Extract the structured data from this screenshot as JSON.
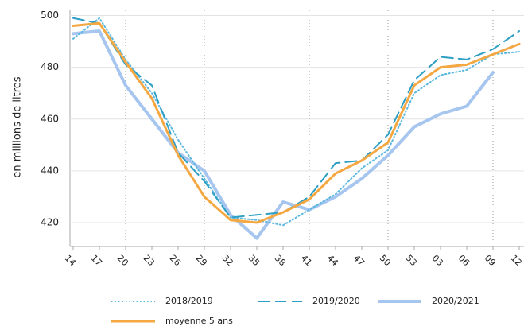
{
  "chart_data": {
    "type": "line",
    "y_label": "en millions de litres",
    "categories": [
      "14",
      "17",
      "20",
      "23",
      "26",
      "29",
      "32",
      "35",
      "38",
      "41",
      "44",
      "47",
      "50",
      "53",
      "03",
      "06",
      "09",
      "12"
    ],
    "series": [
      {
        "name": "2018/2019",
        "color": "#5ab8e0",
        "style": "dotted",
        "values": [
          491,
          499,
          483,
          470,
          452,
          437,
          422,
          421,
          419,
          425,
          431,
          441,
          448,
          470,
          477,
          479,
          485,
          486
        ]
      },
      {
        "name": "2019/2020",
        "color": "#2e9fc4",
        "style": "dashed",
        "values": [
          499,
          497,
          481,
          473,
          447,
          436,
          422,
          423,
          424,
          430,
          443,
          444,
          454,
          475,
          484,
          483,
          487,
          494
        ]
      },
      {
        "name": "2020/2021",
        "color": "#a6c6f0",
        "style": "solid-thick",
        "values": [
          493,
          494,
          473,
          460,
          447,
          440,
          423,
          414,
          428,
          425,
          430,
          437,
          446,
          457,
          462,
          465,
          478,
          null
        ]
      },
      {
        "name": "moyenne 5 ans",
        "color": "#f5a742",
        "style": "solid",
        "values": [
          496,
          497,
          482,
          468,
          446,
          430,
          421,
          420,
          424,
          429,
          439,
          444,
          451,
          473,
          480,
          481,
          485,
          489
        ]
      }
    ],
    "ylim": [
      410.8,
      502
    ],
    "yticks": [
      420,
      440,
      460,
      480,
      500
    ],
    "grid": true
  }
}
